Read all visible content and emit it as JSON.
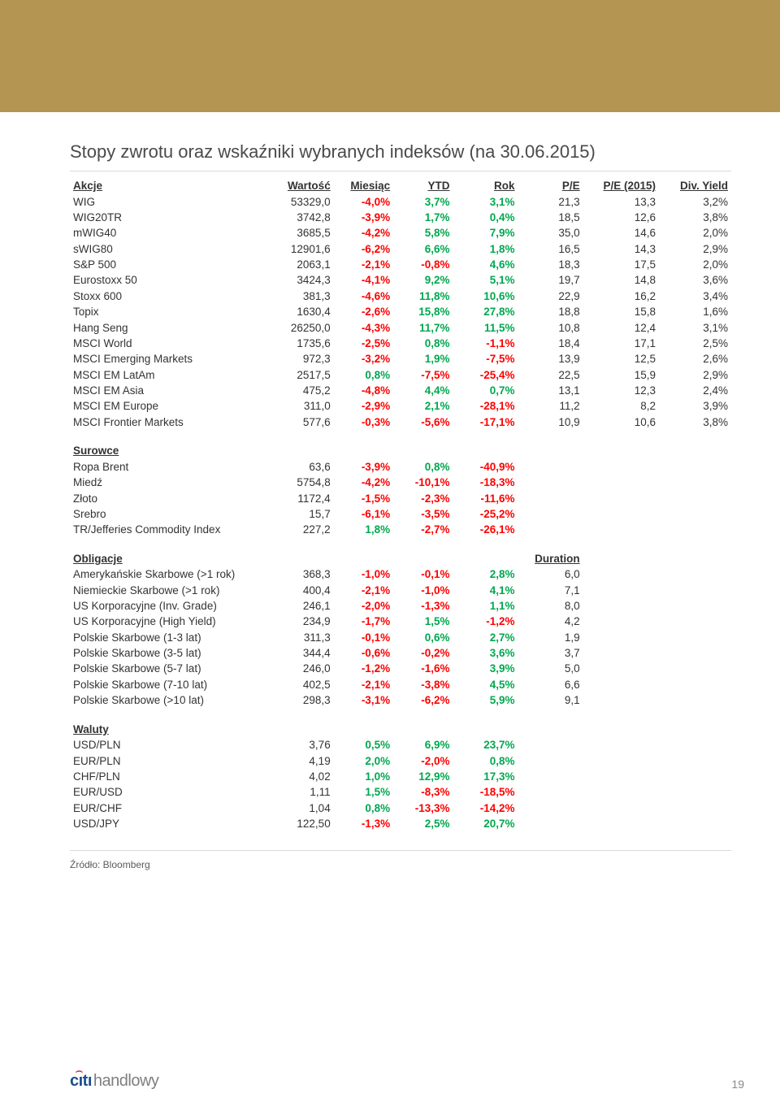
{
  "page_title": "Stopy zwrotu oraz wskaźniki wybranych indeksów (na 30.06.2015)",
  "header_band_color": "#b49652",
  "columns": [
    "Akcje",
    "Wartość",
    "Miesiąc",
    "YTD",
    "Rok",
    "P/E",
    "P/E (2015)",
    "Div. Yield"
  ],
  "colors": {
    "negative": "#ff0000",
    "positive": "#00a84f",
    "text": "#333333"
  },
  "sections": [
    {
      "label": "Akcje",
      "is_header": true,
      "rows": [
        [
          "WIG",
          "53329,0",
          "-4,0%",
          "3,7%",
          "3,1%",
          "21,3",
          "13,3",
          "3,2%"
        ],
        [
          "WIG20TR",
          "3742,8",
          "-3,9%",
          "1,7%",
          "0,4%",
          "18,5",
          "12,6",
          "3,8%"
        ],
        [
          "mWIG40",
          "3685,5",
          "-4,2%",
          "5,8%",
          "7,9%",
          "35,0",
          "14,6",
          "2,0%"
        ],
        [
          "sWIG80",
          "12901,6",
          "-6,2%",
          "6,6%",
          "1,8%",
          "16,5",
          "14,3",
          "2,9%"
        ],
        [
          "S&P 500",
          "2063,1",
          "-2,1%",
          "-0,8%",
          "4,6%",
          "18,3",
          "17,5",
          "2,0%"
        ],
        [
          "Eurostoxx 50",
          "3424,3",
          "-4,1%",
          "9,2%",
          "5,1%",
          "19,7",
          "14,8",
          "3,6%"
        ],
        [
          "Stoxx 600",
          "381,3",
          "-4,6%",
          "11,8%",
          "10,6%",
          "22,9",
          "16,2",
          "3,4%"
        ],
        [
          "Topix",
          "1630,4",
          "-2,6%",
          "15,8%",
          "27,8%",
          "18,8",
          "15,8",
          "1,6%"
        ],
        [
          "Hang Seng",
          "26250,0",
          "-4,3%",
          "11,7%",
          "11,5%",
          "10,8",
          "12,4",
          "3,1%"
        ],
        [
          "MSCI World",
          "1735,6",
          "-2,5%",
          "0,8%",
          "-1,1%",
          "18,4",
          "17,1",
          "2,5%"
        ],
        [
          "MSCI Emerging Markets",
          "972,3",
          "-3,2%",
          "1,9%",
          "-7,5%",
          "13,9",
          "12,5",
          "2,6%"
        ],
        [
          "MSCI EM LatAm",
          "2517,5",
          "0,8%",
          "-7,5%",
          "-25,4%",
          "22,5",
          "15,9",
          "2,9%"
        ],
        [
          "MSCI EM Asia",
          "475,2",
          "-4,8%",
          "4,4%",
          "0,7%",
          "13,1",
          "12,3",
          "2,4%"
        ],
        [
          "MSCI EM Europe",
          "311,0",
          "-2,9%",
          "2,1%",
          "-28,1%",
          "11,2",
          "8,2",
          "3,9%"
        ],
        [
          "MSCI Frontier Markets",
          "577,6",
          "-0,3%",
          "-5,6%",
          "-17,1%",
          "10,9",
          "10,6",
          "3,8%"
        ]
      ]
    },
    {
      "label": "Surowce",
      "rows": [
        [
          "Ropa Brent",
          "63,6",
          "-3,9%",
          "0,8%",
          "-40,9%",
          "",
          "",
          ""
        ],
        [
          "Miedź",
          "5754,8",
          "-4,2%",
          "-10,1%",
          "-18,3%",
          "",
          "",
          ""
        ],
        [
          "Złoto",
          "1172,4",
          "-1,5%",
          "-2,3%",
          "-11,6%",
          "",
          "",
          ""
        ],
        [
          "Srebro",
          "15,7",
          "-6,1%",
          "-3,5%",
          "-25,2%",
          "",
          "",
          ""
        ],
        [
          "TR/Jefferies Commodity Index",
          "227,2",
          "1,8%",
          "-2,7%",
          "-26,1%",
          "",
          "",
          ""
        ]
      ]
    },
    {
      "label": "Obligacje",
      "extra_header": {
        "col": 5,
        "text": "Duration"
      },
      "rows": [
        [
          "Amerykańskie Skarbowe (>1 rok)",
          "368,3",
          "-1,0%",
          "-0,1%",
          "2,8%",
          "6,0",
          "",
          ""
        ],
        [
          "Niemieckie Skarbowe (>1 rok)",
          "400,4",
          "-2,1%",
          "-1,0%",
          "4,1%",
          "7,1",
          "",
          ""
        ],
        [
          "US Korporacyjne (Inv. Grade)",
          "246,1",
          "-2,0%",
          "-1,3%",
          "1,1%",
          "8,0",
          "",
          ""
        ],
        [
          "US Korporacyjne (High Yield)",
          "234,9",
          "-1,7%",
          "1,5%",
          "-1,2%",
          "4,2",
          "",
          ""
        ],
        [
          "Polskie Skarbowe (1-3 lat)",
          "311,3",
          "-0,1%",
          "0,6%",
          "2,7%",
          "1,9",
          "",
          ""
        ],
        [
          "Polskie Skarbowe (3-5 lat)",
          "344,4",
          "-0,6%",
          "-0,2%",
          "3,6%",
          "3,7",
          "",
          ""
        ],
        [
          "Polskie Skarbowe (5-7 lat)",
          "246,0",
          "-1,2%",
          "-1,6%",
          "3,9%",
          "5,0",
          "",
          ""
        ],
        [
          "Polskie Skarbowe (7-10 lat)",
          "402,5",
          "-2,1%",
          "-3,8%",
          "4,5%",
          "6,6",
          "",
          ""
        ],
        [
          "Polskie Skarbowe (>10 lat)",
          "298,3",
          "-3,1%",
          "-6,2%",
          "5,9%",
          "9,1",
          "",
          ""
        ]
      ]
    },
    {
      "label": "Waluty",
      "rows": [
        [
          "USD/PLN",
          "3,76",
          "0,5%",
          "6,9%",
          "23,7%",
          "",
          "",
          ""
        ],
        [
          "EUR/PLN",
          "4,19",
          "2,0%",
          "-2,0%",
          "0,8%",
          "",
          "",
          ""
        ],
        [
          "CHF/PLN",
          "4,02",
          "1,0%",
          "12,9%",
          "17,3%",
          "",
          "",
          ""
        ],
        [
          "EUR/USD",
          "1,11",
          "1,5%",
          "-8,3%",
          "-18,5%",
          "",
          "",
          ""
        ],
        [
          "EUR/CHF",
          "1,04",
          "0,8%",
          "-13,3%",
          "-14,2%",
          "",
          "",
          ""
        ],
        [
          "USD/JPY",
          "122,50",
          "-1,3%",
          "2,5%",
          "20,7%",
          "",
          "",
          ""
        ]
      ]
    }
  ],
  "source_label": "Źródło: Bloomberg",
  "logo": {
    "part1": "cıtı",
    "part2": "handlowy"
  },
  "page_number": "19"
}
